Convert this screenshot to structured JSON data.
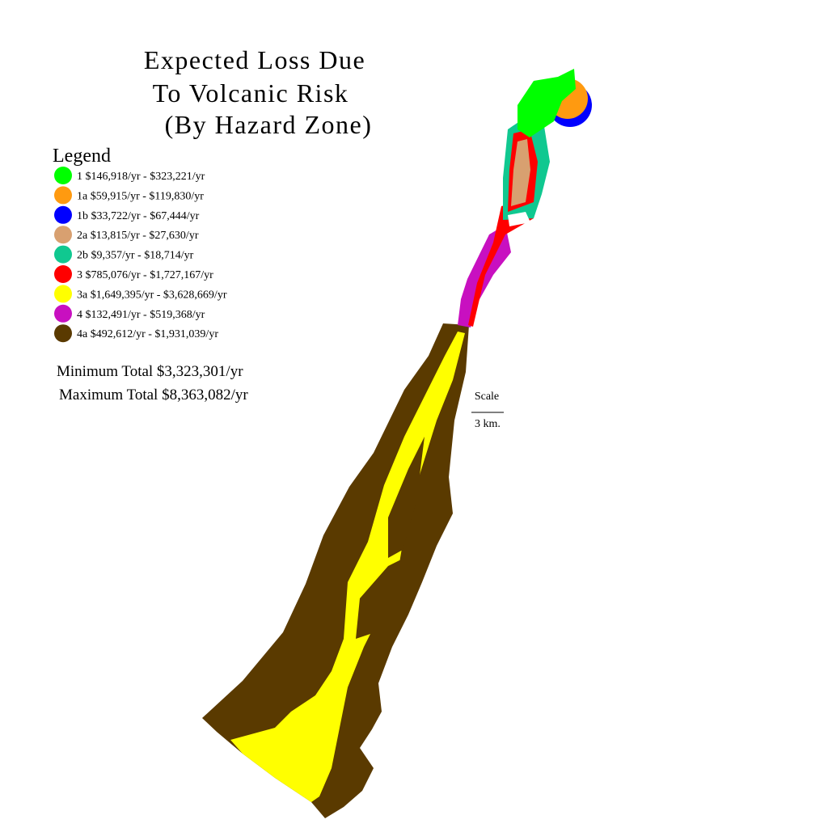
{
  "header": {
    "title_lines": [
      "Expected Loss Due",
      "To Volcanic Risk",
      "(By Hazard Zone)"
    ]
  },
  "legend": {
    "heading": "Legend",
    "items": [
      {
        "label": "1  $146,918/yr - $323,221/yr",
        "color": "#00ff00"
      },
      {
        "label": "1a $59,915/yr - $119,830/yr",
        "color": "#ff9a10"
      },
      {
        "label": "1b $33,722/yr - $67,444/yr",
        "color": "#0000ff"
      },
      {
        "label": "2a $13,815/yr - $27,630/yr",
        "color": "#d8a070"
      },
      {
        "label": "2b $9,357/yr - $18,714/yr",
        "color": "#10c890"
      },
      {
        "label": "3 $785,076/yr - $1,727,167/yr",
        "color": "#ff0000"
      },
      {
        "label": "3a $1,649,395/yr - $3,628,669/yr",
        "color": "#ffff00"
      },
      {
        "label": "4 $132,491/yr - $519,368/yr",
        "color": "#c810c0"
      },
      {
        "label": "4a $492,612/yr - $1,931,039/yr",
        "color": "#5a3a00"
      }
    ]
  },
  "totals": {
    "minimum": "Minimum Total $3,323,301/yr",
    "maximum": "Maximum Total $8,363,082/yr"
  },
  "scale": {
    "heading": "Scale",
    "distance": "3 km."
  }
}
